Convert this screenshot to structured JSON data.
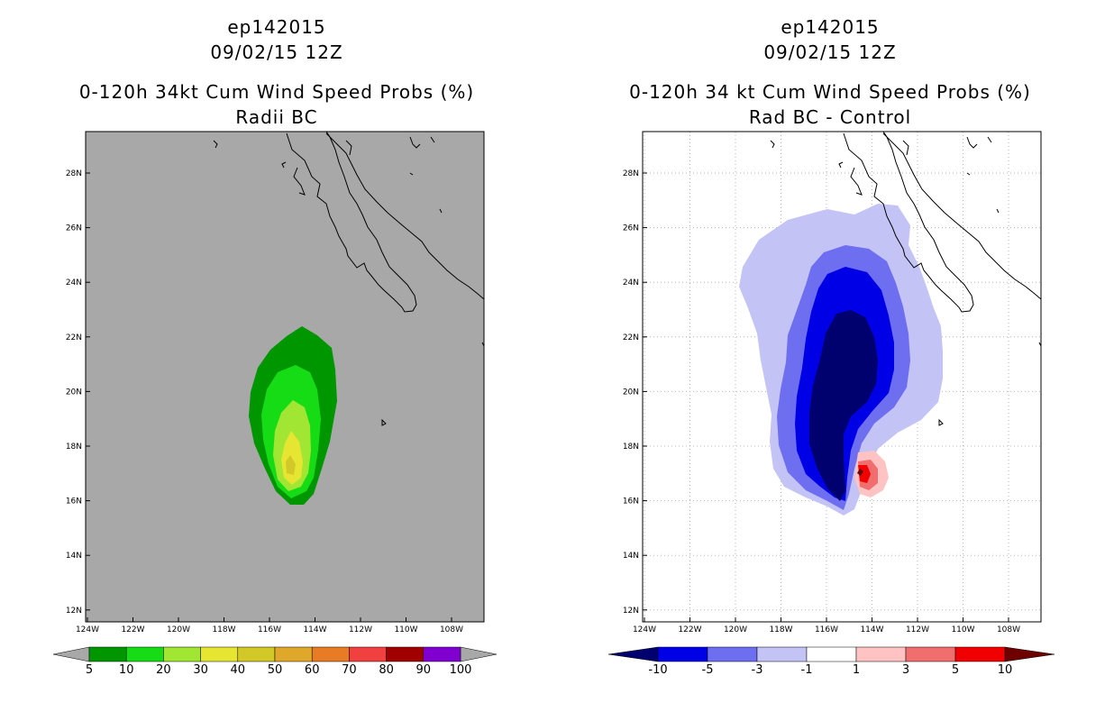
{
  "panels": [
    {
      "storm_id": "ep142015",
      "datetime": "09/02/15 12Z",
      "product": "0-120h 34kt Cum Wind Speed Probs (%)",
      "subtitle": "Radii BC",
      "colorbar": {
        "labels": [
          "5",
          "10",
          "20",
          "30",
          "40",
          "50",
          "60",
          "70",
          "80",
          "90",
          "100"
        ],
        "colors": [
          "#009600",
          "#16dc16",
          "#a0e632",
          "#e6e632",
          "#d2c828",
          "#e0a82a",
          "#e87c24",
          "#f04040",
          "#a00000",
          "#8000d0"
        ],
        "end_colors": [
          "#a8a8a8",
          "#a8a8a8"
        ]
      }
    },
    {
      "storm_id": "ep142015",
      "datetime": "09/02/15 12Z",
      "product": "0-120h 34 kt Cum Wind Speed Probs (%)",
      "subtitle": "Rad BC - Control",
      "colorbar": {
        "labels": [
          "-10",
          "-5",
          "-3",
          "-1",
          "1",
          "3",
          "5",
          "10"
        ],
        "colors": [
          "#0000e6",
          "#6e6ef0",
          "#c3c3f5",
          "#ffffff",
          "#ffc3c3",
          "#f06e6e",
          "#f00000"
        ],
        "end_colors": [
          "#00006e",
          "#6e0000"
        ]
      }
    }
  ],
  "axes": {
    "lon_labels": [
      "124W",
      "122W",
      "120W",
      "118W",
      "116W",
      "114W",
      "112W",
      "110W",
      "108W"
    ],
    "lat_labels": [
      "28N",
      "26N",
      "24N",
      "22N",
      "20N",
      "18N",
      "16N",
      "14N",
      "12N"
    ]
  }
}
